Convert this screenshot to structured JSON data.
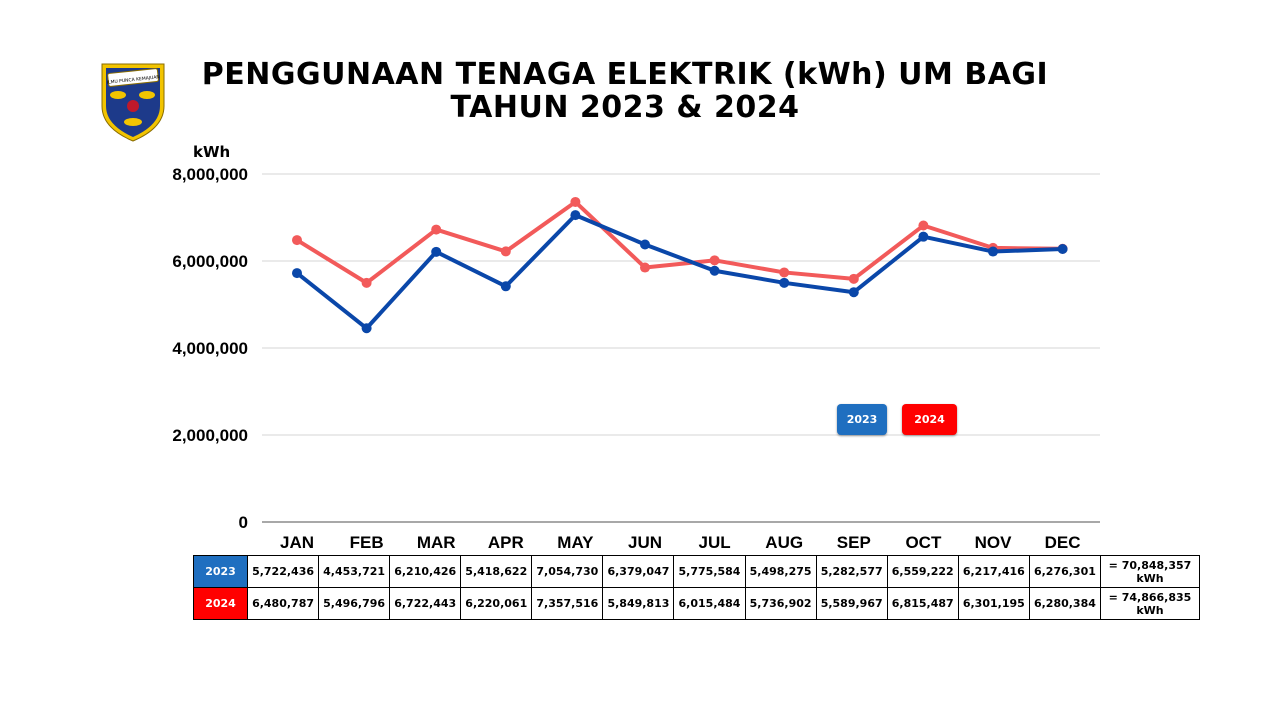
{
  "title": {
    "line1": "PENGGUNAAN TENAGA ELEKTRIK (kWh) UM BAGI",
    "line2": "TAHUN 2023 & 2024"
  },
  "logo": {
    "icon": "um-crest-logo",
    "banner_text": "ILMU PUNCA KEMAJUAN"
  },
  "colors": {
    "series_2023": "#0a47a9",
    "series_2024": "#f25a5a",
    "badge_2023": "#1f6fc0",
    "badge_2024": "#ff0000"
  },
  "chart_data": {
    "type": "line",
    "ylabel": "kWh",
    "xlabel": "",
    "ylim": [
      0,
      8000000
    ],
    "yticks": [
      0,
      2000000,
      4000000,
      6000000,
      8000000
    ],
    "ytick_labels": [
      "0",
      "2,000,000",
      "4,000,000",
      "6,000,000",
      "8,000,000"
    ],
    "grid": true,
    "legend_position": "inside-lower-right",
    "categories": [
      "JAN",
      "FEB",
      "MAR",
      "APR",
      "MAY",
      "JUN",
      "JUL",
      "AUG",
      "SEP",
      "OCT",
      "NOV",
      "DEC"
    ],
    "series": [
      {
        "name": "2023",
        "values": [
          5722436,
          4453721,
          6210426,
          5418622,
          7054730,
          6379047,
          5775584,
          5498275,
          5282577,
          6559222,
          6217416,
          6276301
        ]
      },
      {
        "name": "2024",
        "values": [
          6480787,
          5496796,
          6722443,
          6220061,
          7357516,
          5849813,
          6015484,
          5736902,
          5589967,
          6815487,
          6301195,
          6280384
        ]
      }
    ]
  },
  "legend": {
    "label_2023": "2023",
    "label_2024": "2024"
  },
  "table": {
    "rows": [
      {
        "year": "2023",
        "cells": [
          "5,722,436",
          "4,453,721",
          "6,210,426",
          "5,418,622",
          "7,054,730",
          "6,379,047",
          "5,775,584",
          "5,498,275",
          "5,282,577",
          "6,559,222",
          "6,217,416",
          "6,276,301"
        ],
        "total": "= 70,848,357",
        "unit": "kWh"
      },
      {
        "year": "2024",
        "cells": [
          "6,480,787",
          "5,496,796",
          "6,722,443",
          "6,220,061",
          "7,357,516",
          "5,849,813",
          "6,015,484",
          "5,736,902",
          "5,589,967",
          "6,815,487",
          "6,301,195",
          "6,280,384"
        ],
        "total": "= 74,866,835",
        "unit": "kWh"
      }
    ]
  }
}
